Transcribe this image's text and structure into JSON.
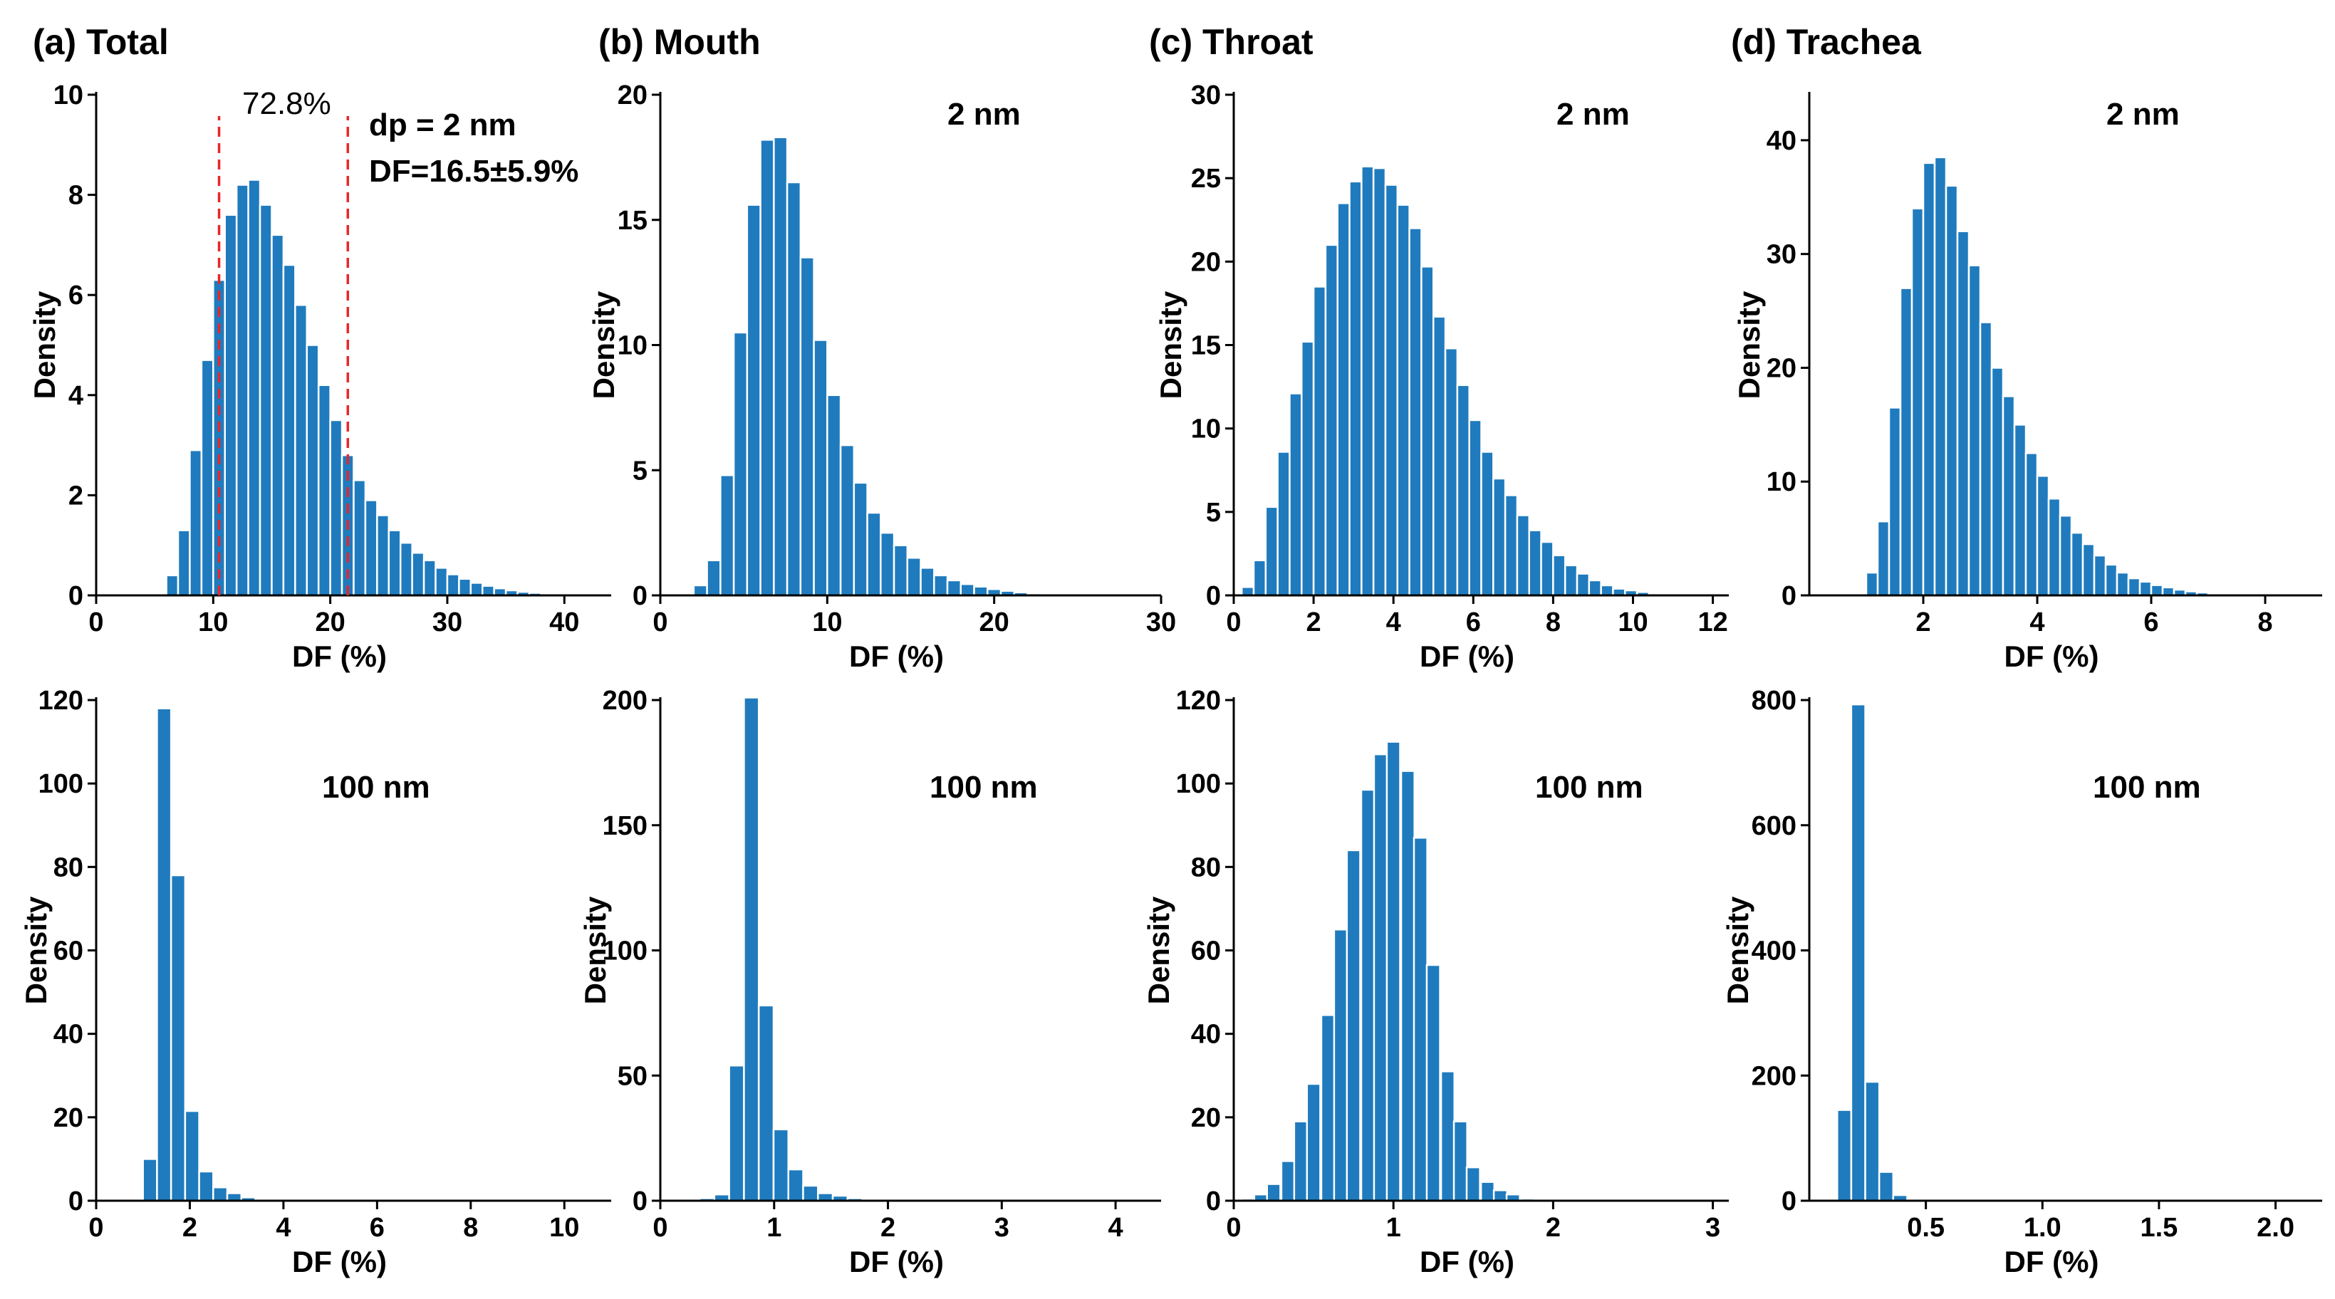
{
  "figure": {
    "column_titles": [
      "(a) Total",
      "(b) Mouth",
      "(c) Throat",
      "(d) Trachea"
    ]
  },
  "chart_data": [
    {
      "id": "total-2nm",
      "type": "bar",
      "title": "(a) Total",
      "xlabel": "DF (%)",
      "ylabel": "Density",
      "xlim": [
        0,
        44
      ],
      "ylim": [
        0,
        10
      ],
      "xticks": [
        0,
        10,
        20,
        30,
        40
      ],
      "yticks": [
        0,
        2,
        4,
        6,
        8,
        10
      ],
      "bin_width": 1.0,
      "bins": [
        6.5,
        7.5,
        8.5,
        9.5,
        10.5,
        11.5,
        12.5,
        13.5,
        14.5,
        15.5,
        16.5,
        17.5,
        18.5,
        19.5,
        20.5,
        21.5,
        22.5,
        23.5,
        24.5,
        25.5,
        26.5,
        27.5,
        28.5,
        29.5,
        30.5,
        31.5,
        32.5,
        33.5,
        34.5,
        35.5,
        36.5,
        37.5,
        38.5,
        39.5
      ],
      "values": [
        0.4,
        1.3,
        2.9,
        4.7,
        6.3,
        7.6,
        8.2,
        8.3,
        7.8,
        7.2,
        6.6,
        5.8,
        5.0,
        4.2,
        3.5,
        2.8,
        2.3,
        1.9,
        1.6,
        1.3,
        1.05,
        0.85,
        0.7,
        0.55,
        0.42,
        0.33,
        0.25,
        0.19,
        0.14,
        0.1,
        0.07,
        0.05,
        0.03,
        0.02
      ],
      "annotations": {
        "size": "dp = 2 nm",
        "df": "DF=16.5±5.9%",
        "pct": "72.8%"
      },
      "ref_lines_x": [
        10.5,
        21.5
      ]
    },
    {
      "id": "mouth-2nm",
      "type": "bar",
      "title": "(b) Mouth",
      "xlabel": "DF (%)",
      "ylabel": "Density",
      "xlim": [
        0,
        30
      ],
      "ylim": [
        0,
        20
      ],
      "xticks": [
        0,
        10,
        20,
        30
      ],
      "yticks": [
        0,
        5,
        10,
        15,
        20
      ],
      "bin_width": 0.8,
      "bins": [
        2.4,
        3.2,
        4.0,
        4.8,
        5.6,
        6.4,
        7.2,
        8.0,
        8.8,
        9.6,
        10.4,
        11.2,
        12.0,
        12.8,
        13.6,
        14.4,
        15.2,
        16.0,
        16.8,
        17.6,
        18.4,
        19.2,
        20.0,
        20.8,
        21.6,
        22.4
      ],
      "values": [
        0.4,
        1.4,
        4.8,
        10.5,
        15.6,
        18.2,
        18.3,
        16.5,
        13.5,
        10.2,
        8.0,
        6.0,
        4.5,
        3.3,
        2.5,
        2.0,
        1.5,
        1.1,
        0.8,
        0.6,
        0.45,
        0.35,
        0.25,
        0.18,
        0.12,
        0.08
      ],
      "annotations": {
        "size": "2 nm"
      }
    },
    {
      "id": "throat-2nm",
      "type": "bar",
      "title": "(c) Throat",
      "xlabel": "DF (%)",
      "ylabel": "Density",
      "xlim": [
        0,
        12.4
      ],
      "ylim": [
        0,
        30
      ],
      "xticks": [
        0,
        2,
        4,
        6,
        8,
        10,
        12
      ],
      "yticks": [
        0,
        5,
        10,
        15,
        20,
        25,
        30
      ],
      "bin_width": 0.3,
      "bins": [
        0.35,
        0.65,
        0.95,
        1.25,
        1.55,
        1.85,
        2.15,
        2.45,
        2.75,
        3.05,
        3.35,
        3.65,
        3.95,
        4.25,
        4.55,
        4.85,
        5.15,
        5.45,
        5.75,
        6.05,
        6.35,
        6.65,
        6.95,
        7.25,
        7.55,
        7.85,
        8.15,
        8.45,
        8.75,
        9.05,
        9.35,
        9.65,
        9.95,
        10.25,
        10.55
      ],
      "values": [
        0.5,
        2.1,
        5.3,
        8.6,
        12.1,
        15.2,
        18.5,
        21.0,
        23.5,
        24.8,
        25.7,
        25.6,
        24.6,
        23.4,
        22.0,
        19.7,
        16.7,
        14.8,
        12.6,
        10.5,
        8.6,
        7.0,
        6.0,
        4.8,
        3.9,
        3.2,
        2.4,
        1.8,
        1.3,
        0.9,
        0.6,
        0.4,
        0.3,
        0.2,
        0.1
      ],
      "annotations": {
        "size": "2 nm"
      }
    },
    {
      "id": "trachea-2nm",
      "type": "bar",
      "title": "(d) Trachea",
      "xlabel": "DF (%)",
      "ylabel": "Density",
      "xlim": [
        0,
        9
      ],
      "ylim": [
        0,
        44
      ],
      "xticks": [
        2,
        4,
        6,
        8
      ],
      "yticks": [
        0,
        10,
        20,
        30,
        40
      ],
      "bin_width": 0.2,
      "bins": [
        1.1,
        1.3,
        1.5,
        1.7,
        1.9,
        2.1,
        2.3,
        2.5,
        2.7,
        2.9,
        3.1,
        3.3,
        3.5,
        3.7,
        3.9,
        4.1,
        4.3,
        4.5,
        4.7,
        4.9,
        5.1,
        5.3,
        5.5,
        5.7,
        5.9,
        6.1,
        6.3,
        6.5,
        6.7,
        6.9,
        7.1,
        7.3,
        7.5
      ],
      "values": [
        2.0,
        6.5,
        16.5,
        27.0,
        34.0,
        38.0,
        38.5,
        36.0,
        32.0,
        29.0,
        24.0,
        20.0,
        17.5,
        15.0,
        12.5,
        10.5,
        8.5,
        7.0,
        5.5,
        4.5,
        3.5,
        2.7,
        2.0,
        1.5,
        1.2,
        0.9,
        0.7,
        0.5,
        0.35,
        0.25,
        0.15,
        0.1,
        0.05
      ],
      "annotations": {
        "size": "2 nm"
      }
    },
    {
      "id": "total-100nm",
      "type": "bar",
      "title": "",
      "xlabel": "DF (%)",
      "ylabel": "Density",
      "xlim": [
        0,
        11
      ],
      "ylim": [
        0,
        120
      ],
      "xticks": [
        0,
        2,
        4,
        6,
        8,
        10
      ],
      "yticks": [
        0,
        20,
        40,
        60,
        80,
        100,
        120
      ],
      "bin_width": 0.3,
      "bins": [
        0.85,
        1.15,
        1.45,
        1.75,
        2.05,
        2.35,
        2.65,
        2.95,
        3.25,
        3.55,
        3.85
      ],
      "values": [
        0.3,
        10.0,
        118.0,
        78.0,
        21.5,
        7.0,
        3.2,
        1.8,
        0.8,
        0.4,
        0.2
      ],
      "annotations": {
        "size": "100 nm"
      }
    },
    {
      "id": "mouth-100nm",
      "type": "bar",
      "title": "",
      "xlabel": "DF (%)",
      "ylabel": "Density",
      "xlim": [
        0,
        4.4
      ],
      "ylim": [
        0,
        200
      ],
      "xticks": [
        0,
        1,
        2,
        3,
        4
      ],
      "yticks": [
        0,
        50,
        100,
        150,
        200
      ],
      "bin_width": 0.13,
      "bins": [
        0.28,
        0.41,
        0.54,
        0.67,
        0.8,
        0.93,
        1.06,
        1.19,
        1.32,
        1.45,
        1.58,
        1.71,
        1.84,
        1.97
      ],
      "values": [
        0.5,
        1.0,
        2.5,
        54.0,
        201.0,
        78.0,
        28.5,
        12.5,
        6.0,
        3.0,
        2.0,
        1.0,
        0.5,
        0.3
      ],
      "annotations": {
        "size": "100 nm"
      }
    },
    {
      "id": "throat-100nm",
      "type": "bar",
      "title": "",
      "xlabel": "DF (%)",
      "ylabel": "Density",
      "xlim": [
        0,
        3.1
      ],
      "ylim": [
        0,
        120
      ],
      "xticks": [
        0,
        1,
        2,
        3
      ],
      "yticks": [
        0,
        20,
        40,
        60,
        80,
        100,
        120
      ],
      "bin_width": 0.083,
      "bins": [
        0.09,
        0.17,
        0.25,
        0.34,
        0.42,
        0.5,
        0.59,
        0.67,
        0.75,
        0.84,
        0.92,
        1.0,
        1.09,
        1.17,
        1.25,
        1.34,
        1.42,
        1.5,
        1.59,
        1.67,
        1.75,
        1.84,
        1.92
      ],
      "values": [
        0.5,
        1.5,
        4.0,
        9.5,
        19.0,
        28.0,
        44.5,
        65.0,
        84.0,
        98.5,
        107.0,
        110.0,
        103.0,
        87.0,
        56.5,
        31.0,
        19.0,
        8.0,
        4.5,
        2.5,
        1.5,
        0.5,
        0.3
      ],
      "annotations": {
        "size": "100 nm"
      }
    },
    {
      "id": "trachea-100nm",
      "type": "bar",
      "title": "",
      "xlabel": "DF (%)",
      "ylabel": "Density",
      "xlim": [
        0,
        2.2
      ],
      "ylim": [
        0,
        800
      ],
      "xticks": [
        0.5,
        1.0,
        1.5,
        2.0
      ],
      "yticks": [
        0,
        200,
        400,
        600,
        800
      ],
      "xtick_format": "fixed1",
      "bin_width": 0.06,
      "bins": [
        0.09,
        0.15,
        0.21,
        0.27,
        0.33,
        0.39,
        0.45,
        0.51
      ],
      "values": [
        0.3,
        145.0,
        793.0,
        190.0,
        46.0,
        9.0,
        2.0,
        0.5
      ],
      "annotations": {
        "size": "100 nm"
      }
    }
  ]
}
